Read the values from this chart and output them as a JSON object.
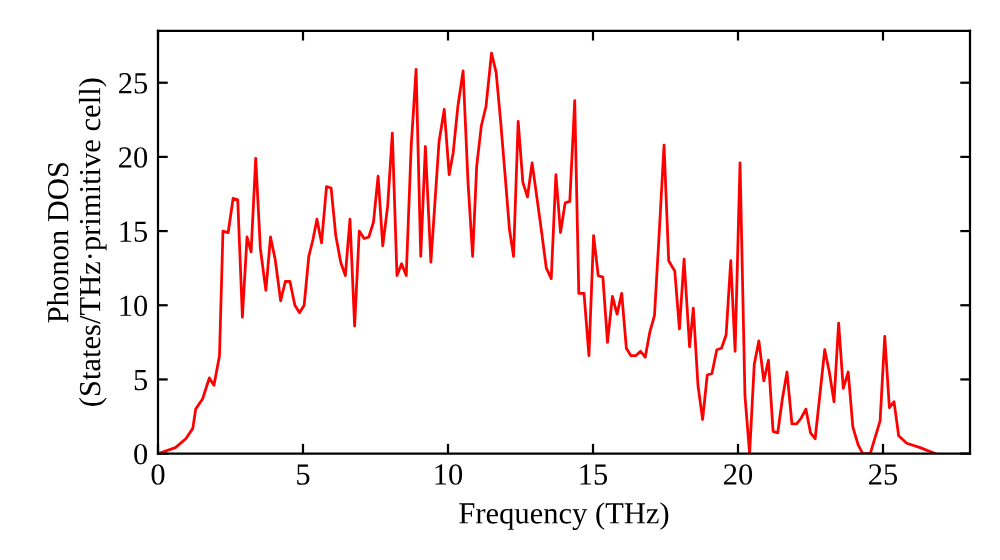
{
  "chart_data": {
    "type": "line",
    "xlabel": "Frequency (THz)",
    "ylabel": "Phonon DOS\n(States/THz·primitive cell)",
    "xlim": [
      0,
      28
    ],
    "ylim": [
      0,
      28.5
    ],
    "xticks": [
      0,
      5,
      10,
      15,
      20,
      25
    ],
    "yticks": [
      0,
      5,
      10,
      15,
      20,
      25
    ],
    "grid": false,
    "marker": "none",
    "line_style": "solid",
    "series": [
      {
        "color": "#ff0000",
        "x": [
          0,
          0.6,
          0.96,
          1.2,
          1.3,
          1.54,
          1.77,
          1.93,
          2.12,
          2.24,
          2.42,
          2.59,
          2.75,
          2.91,
          3.07,
          3.21,
          3.37,
          3.53,
          3.72,
          3.88,
          4.04,
          4.23,
          4.39,
          4.55,
          4.72,
          4.88,
          5.04,
          5.2,
          5.34,
          5.48,
          5.64,
          5.81,
          5.97,
          6.13,
          6.3,
          6.46,
          6.62,
          6.78,
          6.94,
          7.11,
          7.27,
          7.43,
          7.59,
          7.75,
          7.92,
          8.08,
          8.24,
          8.4,
          8.56,
          8.73,
          8.9,
          9.06,
          9.22,
          9.41,
          9.69,
          9.87,
          10.04,
          10.18,
          10.34,
          10.52,
          10.69,
          10.85,
          10.99,
          11.15,
          11.31,
          11.5,
          11.66,
          11.82,
          11.98,
          12.12,
          12.26,
          12.42,
          12.58,
          12.74,
          12.9,
          13.07,
          13.23,
          13.39,
          13.56,
          13.72,
          13.88,
          14.04,
          14.2,
          14.37,
          14.51,
          14.69,
          14.86,
          15.02,
          15.18,
          15.34,
          15.5,
          15.67,
          15.83,
          15.99,
          16.15,
          16.31,
          16.47,
          16.64,
          16.8,
          16.96,
          17.12,
          17.29,
          17.45,
          17.61,
          17.82,
          17.98,
          18.14,
          18.33,
          18.46,
          18.62,
          18.78,
          18.94,
          19.1,
          19.27,
          19.43,
          19.59,
          19.75,
          19.9,
          20.07,
          20.24,
          20.4,
          20.56,
          20.72,
          20.89,
          21.05,
          21.21,
          21.37,
          21.53,
          21.69,
          21.86,
          22.02,
          22.18,
          22.34,
          22.5,
          22.66,
          22.82,
          22.99,
          23.15,
          23.31,
          23.47,
          23.63,
          23.8,
          23.96,
          24.14,
          24.3,
          24.56,
          24.9,
          25.06,
          25.22,
          25.38,
          25.54,
          25.82,
          26.28,
          26.8
        ],
        "values": [
          0,
          0.4,
          1.0,
          1.7,
          3.0,
          3.7,
          5.1,
          4.6,
          6.6,
          15.0,
          14.9,
          17.2,
          17.1,
          9.2,
          14.6,
          13.6,
          19.9,
          13.8,
          11.0,
          14.6,
          13.1,
          10.3,
          11.6,
          11.6,
          10.0,
          9.5,
          10.0,
          13.3,
          14.4,
          15.8,
          14.2,
          18.0,
          17.9,
          14.7,
          12.9,
          12.0,
          15.8,
          8.6,
          15.0,
          14.5,
          14.6,
          15.6,
          18.7,
          14.0,
          16.7,
          21.6,
          12.0,
          12.8,
          12.0,
          20.7,
          25.9,
          13.3,
          20.7,
          12.9,
          21.0,
          23.2,
          18.8,
          20.3,
          23.4,
          25.8,
          18.3,
          13.3,
          19.4,
          22.1,
          23.4,
          27.0,
          25.7,
          22.3,
          18.5,
          15.1,
          13.3,
          22.4,
          18.3,
          17.3,
          19.6,
          17.2,
          14.9,
          12.5,
          11.8,
          18.8,
          14.9,
          16.9,
          17.0,
          23.8,
          10.8,
          10.8,
          6.6,
          14.7,
          12.0,
          11.9,
          7.5,
          10.6,
          9.4,
          10.8,
          7.1,
          6.6,
          6.6,
          6.9,
          6.5,
          8.2,
          9.3,
          15.1,
          20.8,
          13.0,
          12.3,
          8.4,
          13.1,
          7.2,
          9.8,
          4.6,
          2.3,
          5.3,
          5.4,
          7.0,
          7.1,
          8.0,
          13.0,
          6.9,
          19.6,
          3.9,
          0,
          6.0,
          7.6,
          4.9,
          6.3,
          1.5,
          1.4,
          3.7,
          5.5,
          2.0,
          2.0,
          2.4,
          3.0,
          1.4,
          1.0,
          3.9,
          7.0,
          5.5,
          3.5,
          8.8,
          4.4,
          5.5,
          1.8,
          0.6,
          0,
          0,
          2.2,
          7.9,
          3.1,
          3.5,
          1.2,
          0.7,
          0.4,
          0
        ]
      }
    ]
  }
}
